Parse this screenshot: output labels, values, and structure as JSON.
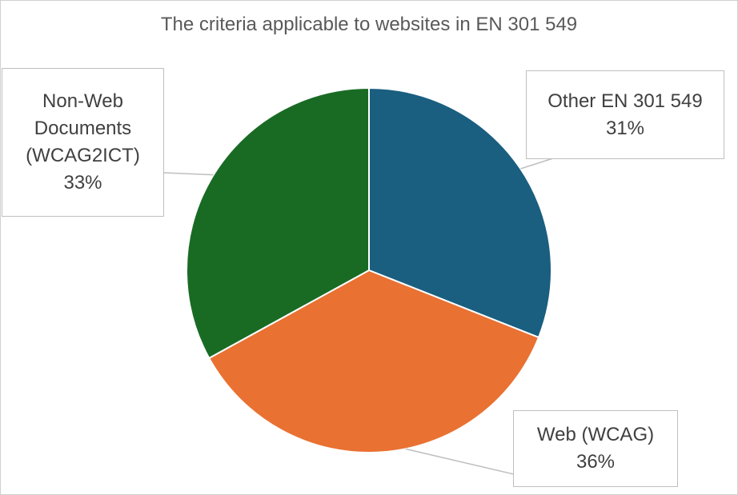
{
  "chart_data": {
    "type": "pie",
    "title": "The criteria applicable to websites in EN 301 549",
    "categories": [
      "Other EN 301 549",
      "Web (WCAG)",
      "Non-Web Documents (WCAG2ICT)"
    ],
    "values": [
      31,
      36,
      33
    ],
    "value_labels": [
      "31%",
      "36%",
      "33%"
    ],
    "colors": [
      "#1a5e80",
      "#e97132",
      "#196b24"
    ]
  }
}
